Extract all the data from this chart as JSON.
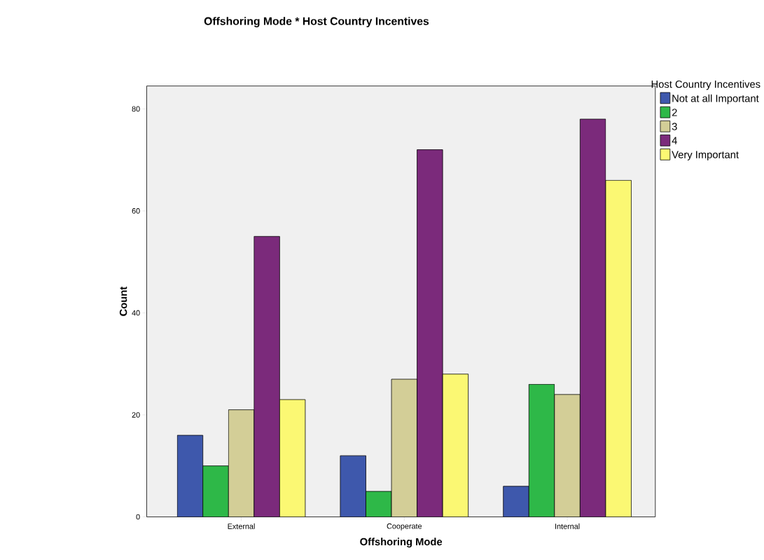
{
  "chart_data": {
    "type": "bar",
    "title": "Offshoring Mode * Host Country Incentives",
    "xlabel": "Offshoring Mode",
    "ylabel": "Count",
    "legend_title": "Host Country Incentives",
    "legend": "right",
    "grid": false,
    "categories": [
      "External",
      "Cooperate",
      "Internal"
    ],
    "ylim": [
      0,
      84.5
    ],
    "yticks": [
      0,
      20,
      40,
      60,
      80
    ],
    "series": [
      {
        "name": "Not at all Important",
        "color": "#3e58ac",
        "values": [
          16,
          12,
          6
        ]
      },
      {
        "name": "2",
        "color": "#2eb848",
        "values": [
          10,
          5,
          26
        ]
      },
      {
        "name": "3",
        "color": "#d3ce97",
        "values": [
          21,
          27,
          24
        ]
      },
      {
        "name": "4",
        "color": "#7b2a7b",
        "values": [
          55,
          72,
          78
        ]
      },
      {
        "name": "Very Important",
        "color": "#fbf873",
        "values": [
          23,
          28,
          66
        ]
      }
    ]
  }
}
